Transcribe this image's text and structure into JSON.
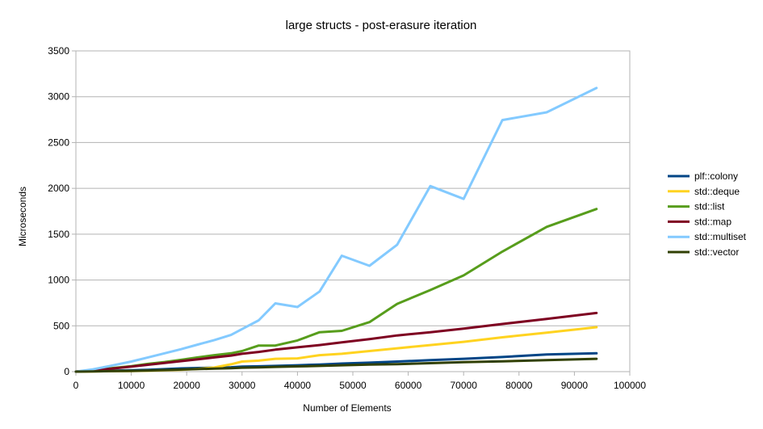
{
  "chart_data": {
    "type": "line",
    "title": "large structs - post-erasure iteration",
    "xlabel": "Number of Elements",
    "ylabel": "Microseconds",
    "xlim": [
      0,
      100000
    ],
    "ylim": [
      0,
      3500
    ],
    "x_ticks": [
      0,
      10000,
      20000,
      30000,
      40000,
      50000,
      60000,
      70000,
      80000,
      90000,
      100000
    ],
    "y_ticks": [
      0,
      500,
      1000,
      1500,
      2000,
      2500,
      3000,
      3500
    ],
    "grid": "horizontal",
    "legend_position": "right",
    "series": [
      {
        "name": "plf::colony",
        "color": "#004586",
        "points": [
          [
            0,
            0
          ],
          [
            3000,
            5
          ],
          [
            6000,
            10
          ],
          [
            10000,
            15
          ],
          [
            13000,
            20
          ],
          [
            16000,
            27
          ],
          [
            19000,
            35
          ],
          [
            22000,
            40
          ],
          [
            25000,
            44
          ],
          [
            28000,
            48
          ],
          [
            30000,
            55
          ],
          [
            33000,
            58
          ],
          [
            36000,
            63
          ],
          [
            40000,
            70
          ],
          [
            44000,
            78
          ],
          [
            48000,
            88
          ],
          [
            53000,
            98
          ],
          [
            58000,
            110
          ],
          [
            64000,
            125
          ],
          [
            70000,
            140
          ],
          [
            77000,
            160
          ],
          [
            85000,
            187
          ],
          [
            94000,
            200
          ]
        ]
      },
      {
        "name": "std::deque",
        "color": "#ffd320",
        "points": [
          [
            0,
            0
          ],
          [
            3000,
            2
          ],
          [
            6000,
            5
          ],
          [
            10000,
            7
          ],
          [
            13000,
            10
          ],
          [
            16000,
            15
          ],
          [
            19000,
            20
          ],
          [
            22000,
            30
          ],
          [
            25000,
            45
          ],
          [
            28000,
            80
          ],
          [
            30000,
            110
          ],
          [
            33000,
            120
          ],
          [
            36000,
            140
          ],
          [
            40000,
            145
          ],
          [
            44000,
            180
          ],
          [
            48000,
            195
          ],
          [
            53000,
            225
          ],
          [
            58000,
            255
          ],
          [
            64000,
            290
          ],
          [
            70000,
            325
          ],
          [
            77000,
            375
          ],
          [
            85000,
            425
          ],
          [
            94000,
            485
          ]
        ]
      },
      {
        "name": "std::list",
        "color": "#579d1c",
        "points": [
          [
            0,
            0
          ],
          [
            3000,
            10
          ],
          [
            6000,
            35
          ],
          [
            10000,
            60
          ],
          [
            13000,
            85
          ],
          [
            16000,
            105
          ],
          [
            19000,
            130
          ],
          [
            22000,
            155
          ],
          [
            25000,
            180
          ],
          [
            28000,
            200
          ],
          [
            30000,
            225
          ],
          [
            33000,
            285
          ],
          [
            36000,
            285
          ],
          [
            40000,
            340
          ],
          [
            44000,
            430
          ],
          [
            48000,
            445
          ],
          [
            53000,
            540
          ],
          [
            58000,
            740
          ],
          [
            64000,
            890
          ],
          [
            70000,
            1050
          ],
          [
            77000,
            1310
          ],
          [
            85000,
            1580
          ],
          [
            94000,
            1775
          ]
        ]
      },
      {
        "name": "std::map",
        "color": "#7e0021",
        "points": [
          [
            0,
            0
          ],
          [
            3000,
            15
          ],
          [
            6000,
            30
          ],
          [
            10000,
            55
          ],
          [
            13000,
            75
          ],
          [
            16000,
            95
          ],
          [
            19000,
            115
          ],
          [
            22000,
            135
          ],
          [
            25000,
            155
          ],
          [
            28000,
            175
          ],
          [
            30000,
            195
          ],
          [
            33000,
            215
          ],
          [
            36000,
            240
          ],
          [
            40000,
            265
          ],
          [
            44000,
            290
          ],
          [
            48000,
            320
          ],
          [
            53000,
            355
          ],
          [
            58000,
            395
          ],
          [
            64000,
            430
          ],
          [
            70000,
            470
          ],
          [
            77000,
            520
          ],
          [
            85000,
            575
          ],
          [
            94000,
            640
          ]
        ]
      },
      {
        "name": "std::multiset",
        "color": "#83caff",
        "points": [
          [
            0,
            0
          ],
          [
            3000,
            25
          ],
          [
            6000,
            60
          ],
          [
            10000,
            110
          ],
          [
            13000,
            155
          ],
          [
            16000,
            200
          ],
          [
            19000,
            245
          ],
          [
            22000,
            295
          ],
          [
            25000,
            345
          ],
          [
            28000,
            400
          ],
          [
            30000,
            465
          ],
          [
            33000,
            560
          ],
          [
            36000,
            745
          ],
          [
            40000,
            705
          ],
          [
            44000,
            875
          ],
          [
            48000,
            1265
          ],
          [
            53000,
            1155
          ],
          [
            58000,
            1385
          ],
          [
            64000,
            2025
          ],
          [
            70000,
            1885
          ],
          [
            77000,
            2745
          ],
          [
            85000,
            2830
          ],
          [
            94000,
            3095
          ]
        ]
      },
      {
        "name": "std::vector",
        "color": "#314004",
        "points": [
          [
            0,
            0
          ],
          [
            3000,
            2
          ],
          [
            6000,
            5
          ],
          [
            10000,
            8
          ],
          [
            13000,
            12
          ],
          [
            16000,
            18
          ],
          [
            19000,
            23
          ],
          [
            22000,
            28
          ],
          [
            25000,
            33
          ],
          [
            28000,
            38
          ],
          [
            30000,
            43
          ],
          [
            33000,
            47
          ],
          [
            36000,
            52
          ],
          [
            40000,
            57
          ],
          [
            44000,
            63
          ],
          [
            48000,
            70
          ],
          [
            53000,
            78
          ],
          [
            58000,
            82
          ],
          [
            64000,
            93
          ],
          [
            70000,
            103
          ],
          [
            77000,
            113
          ],
          [
            85000,
            125
          ],
          [
            94000,
            140
          ]
        ]
      }
    ]
  }
}
